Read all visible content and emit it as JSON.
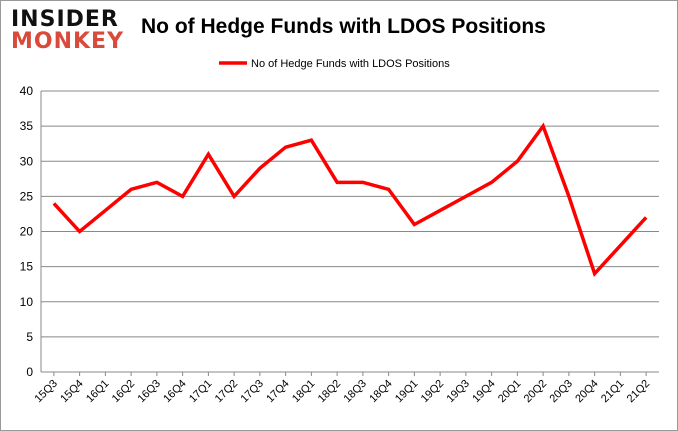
{
  "logo": {
    "line1": "INSIDER",
    "line2": "MONKEY"
  },
  "chart_data": {
    "type": "line",
    "title": "No of Hedge Funds with LDOS Positions",
    "categories": [
      "15Q3",
      "15Q4",
      "16Q1",
      "16Q2",
      "16Q3",
      "16Q4",
      "17Q1",
      "17Q2",
      "17Q3",
      "17Q4",
      "18Q1",
      "18Q2",
      "18Q3",
      "18Q4",
      "19Q1",
      "19Q2",
      "19Q3",
      "19Q4",
      "20Q1",
      "20Q2",
      "20Q3",
      "20Q4",
      "21Q1",
      "21Q2"
    ],
    "series": [
      {
        "name": "No of Hedge Funds with LDOS Positions",
        "color": "#ff0000",
        "values": [
          24,
          20,
          23,
          26,
          27,
          25,
          31,
          25,
          29,
          32,
          33,
          27,
          27,
          26,
          21,
          23,
          25,
          27,
          30,
          35,
          25,
          14,
          18,
          22
        ]
      }
    ],
    "ylim": [
      0,
      40
    ],
    "yticks": [
      0,
      5,
      10,
      15,
      20,
      25,
      30,
      35,
      40
    ],
    "grid": true,
    "legend": "top-center"
  }
}
